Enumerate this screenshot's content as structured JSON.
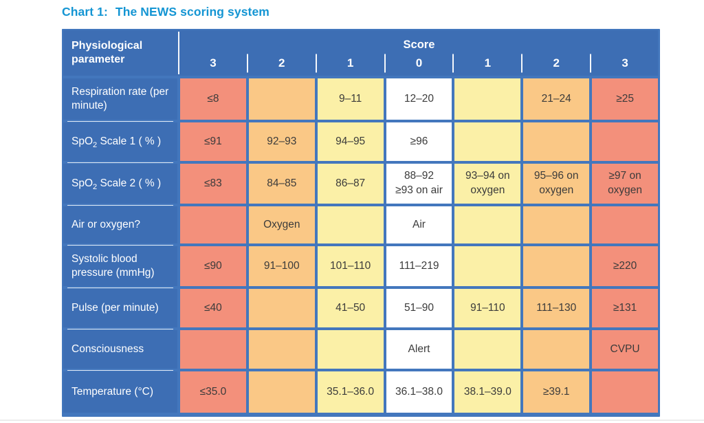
{
  "title": {
    "prefix": "Chart 1:",
    "text": "The NEWS scoring system"
  },
  "colors": {
    "header_blue": "#3D6EB4",
    "grid_blue": "#4377BD",
    "score3_red": "#F3907B",
    "score2_orange": "#FAC886",
    "score1_yellow": "#FBF0A7",
    "score0_white": "#FFFFFF",
    "cell_text": "#3B3B3B",
    "title_cyan": "#1495D3"
  },
  "table": {
    "corner_header": "Physiological parameter",
    "score_header": "Score",
    "score_columns": [
      "3",
      "2",
      "1",
      "0",
      "1",
      "2",
      "3"
    ],
    "rows": [
      {
        "label": {
          "pre": "Respiration rate (per minute)",
          "sub": "",
          "post": ""
        },
        "cells": [
          "≤8",
          "",
          "9–11",
          "12–20",
          "",
          "21–24",
          "≥25"
        ]
      },
      {
        "label": {
          "pre": "SpO",
          "sub": "2",
          "post": " Scale 1 ( % )"
        },
        "cells": [
          "≤91",
          "92–93",
          "94–95",
          "≥96",
          "",
          "",
          ""
        ]
      },
      {
        "label": {
          "pre": "SpO",
          "sub": "2",
          "post": " Scale 2 ( % )"
        },
        "cells": [
          "≤83",
          "84–85",
          "86–87",
          "88–92\n≥93 on air",
          "93–94 on\noxygen",
          "95–96 on\noxygen",
          "≥97 on\noxygen"
        ]
      },
      {
        "label": {
          "pre": "Air or oxygen?",
          "sub": "",
          "post": ""
        },
        "cells": [
          "",
          "Oxygen",
          "",
          "Air",
          "",
          "",
          ""
        ]
      },
      {
        "label": {
          "pre": "Systolic blood pressure (mmHg)",
          "sub": "",
          "post": ""
        },
        "cells": [
          "≤90",
          "91–100",
          "101–110",
          "111–219",
          "",
          "",
          "≥220"
        ]
      },
      {
        "label": {
          "pre": "Pulse (per minute)",
          "sub": "",
          "post": ""
        },
        "cells": [
          "≤40",
          "",
          "41–50",
          "51–90",
          "91–110",
          "111–130",
          "≥131"
        ]
      },
      {
        "label": {
          "pre": "Consciousness",
          "sub": "",
          "post": ""
        },
        "cells": [
          "",
          "",
          "",
          "Alert",
          "",
          "",
          "CVPU"
        ]
      },
      {
        "label": {
          "pre": "Temperature (°C)",
          "sub": "",
          "post": ""
        },
        "cells": [
          "≤35.0",
          "",
          "35.1–36.0",
          "36.1–38.0",
          "38.1–39.0",
          "≥39.1",
          ""
        ]
      }
    ]
  }
}
